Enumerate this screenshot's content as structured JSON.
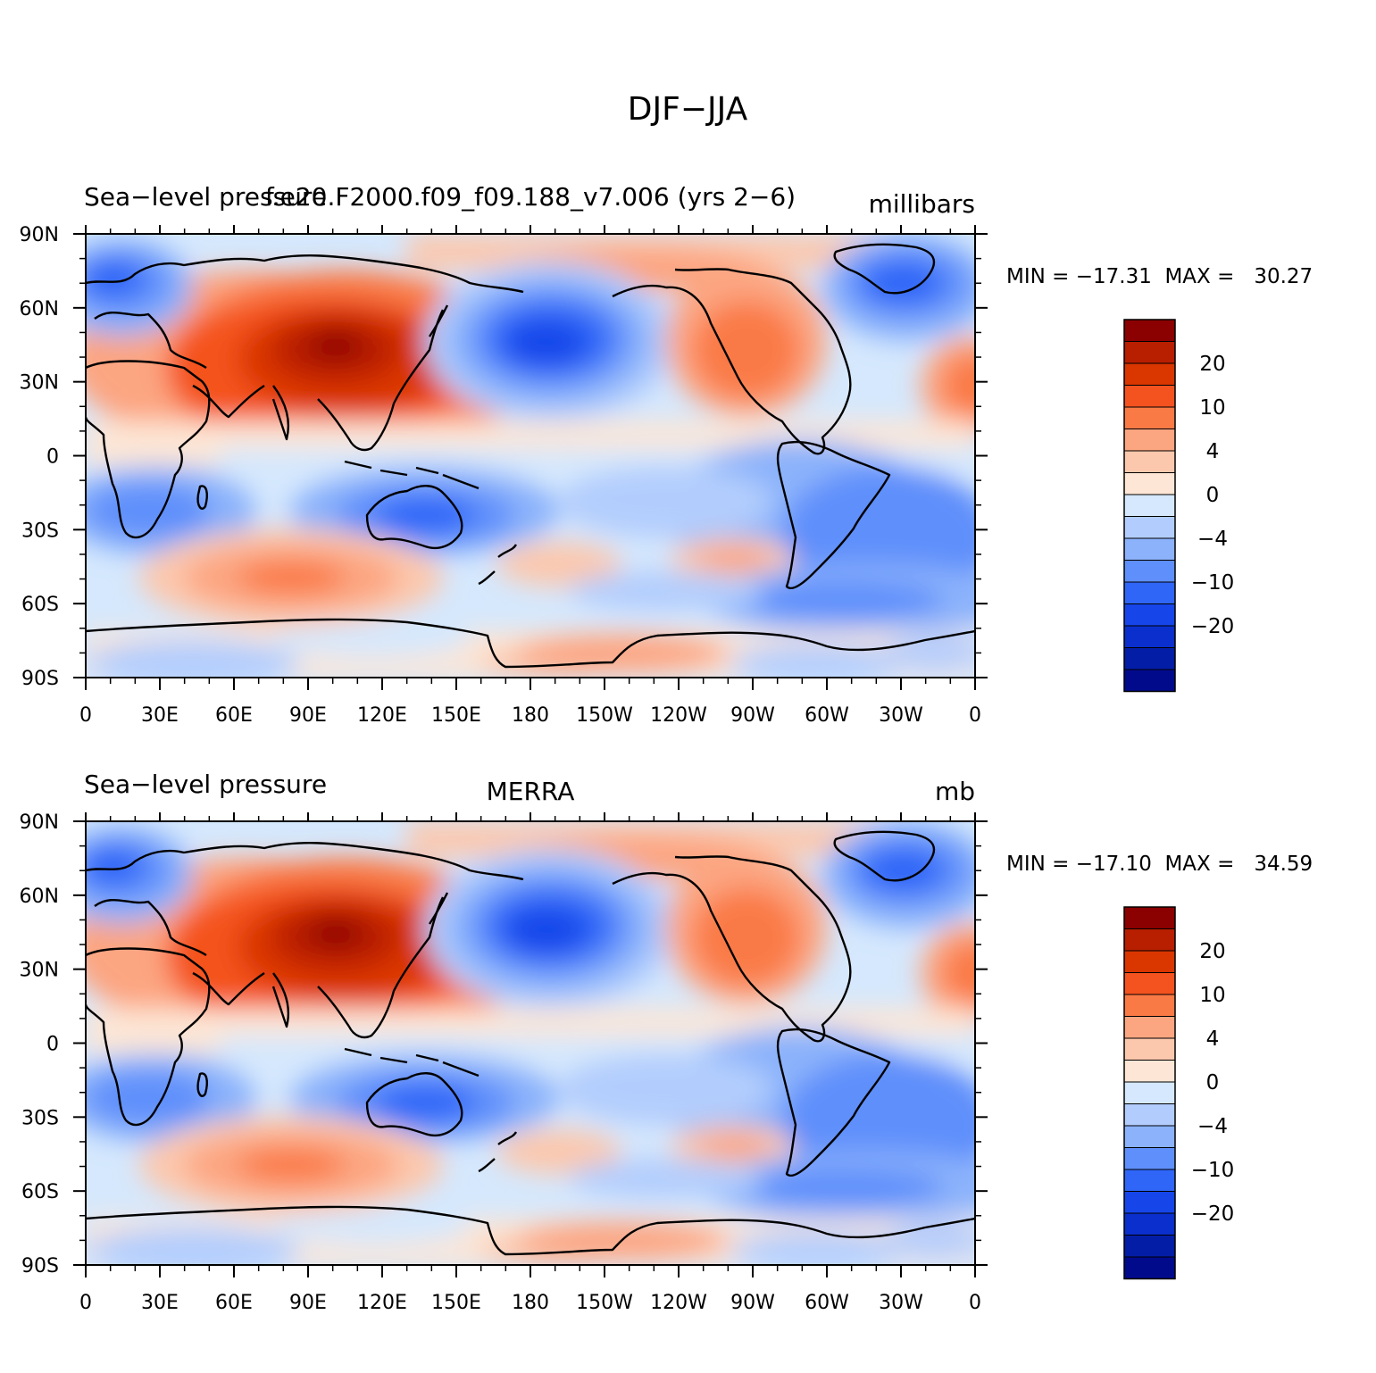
{
  "figure_title": "DJF−JJA",
  "colorbar_labels": [
    "20",
    "10",
    "4",
    "0",
    "−4",
    "−10",
    "−20"
  ],
  "colorbar_colors": [
    "#8b0000",
    "#b81e00",
    "#d93600",
    "#f4521f",
    "#fa7a46",
    "#fca581",
    "#fcc8ad",
    "#fde6d5",
    "#d5e8fd",
    "#b2cdfd",
    "#8bb2fb",
    "#5f8ffb",
    "#2f66f8",
    "#1646ea",
    "#0a2fcd",
    "#041da6",
    "#020a8c"
  ],
  "chart_data": [
    {
      "type": "heatmap",
      "title_left": "Sea−level pressure",
      "title_center": "f.e20.F2000.f09_f09.188_v7.006 (yrs 2−6)",
      "title_right": "millibars",
      "stats": "MIN = −17.31  MAX =   30.27",
      "min": -17.31,
      "max": 30.27,
      "x_ticks": [
        "0",
        "30E",
        "60E",
        "90E",
        "120E",
        "150E",
        "180",
        "150W",
        "120W",
        "90W",
        "60W",
        "30W",
        "0"
      ],
      "y_ticks": [
        "90N",
        "60N",
        "30N",
        "0",
        "30S",
        "60S",
        "90S"
      ],
      "xlim": [
        0,
        360
      ],
      "ylim": [
        -90,
        90
      ]
    },
    {
      "type": "heatmap",
      "title_left": "Sea−level pressure",
      "title_center": "MERRA",
      "title_right": "mb",
      "stats": "MIN = −17.10  MAX =   34.59",
      "min": -17.1,
      "max": 34.59,
      "x_ticks": [
        "0",
        "30E",
        "60E",
        "90E",
        "120E",
        "150E",
        "180",
        "150W",
        "120W",
        "90W",
        "60W",
        "30W",
        "0"
      ],
      "y_ticks": [
        "90N",
        "60N",
        "30N",
        "0",
        "30S",
        "60S",
        "90S"
      ],
      "xlim": [
        0,
        360
      ],
      "ylim": [
        -90,
        90
      ]
    }
  ]
}
